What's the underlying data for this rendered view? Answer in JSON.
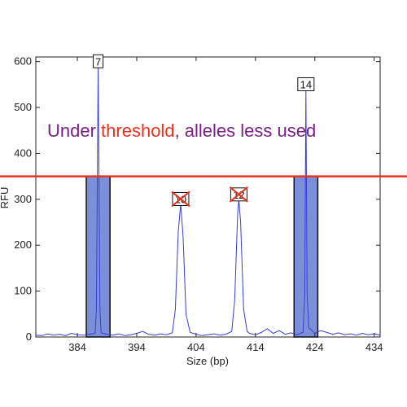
{
  "chart_data": {
    "type": "line",
    "title": "",
    "xlabel": "Size (bp)",
    "ylabel": "RFU",
    "xlim": [
      377,
      435
    ],
    "ylim": [
      0,
      610
    ],
    "xticks": [
      384,
      394,
      404,
      414,
      424,
      434
    ],
    "yticks": [
      0,
      100,
      200,
      300,
      400,
      500,
      600
    ],
    "grid": false,
    "annotation": {
      "parts": [
        {
          "text": "Under ",
          "color": "#7a1f86"
        },
        {
          "text": "threshold",
          "color": "#e8321e"
        },
        {
          "text": ", alleles less used",
          "color": "#7a1f86"
        }
      ]
    },
    "threshold": {
      "y": 350,
      "color": "#e8321e"
    },
    "bars": [
      {
        "x0": 385.5,
        "x1": 389.5,
        "value": 350,
        "color": "#7b8fd8"
      },
      {
        "x0": 420.5,
        "x1": 424.5,
        "value": 350,
        "color": "#7b8fd8"
      }
    ],
    "peaks": [
      {
        "x": 387.5,
        "height": 590,
        "label": "7",
        "crossed": false
      },
      {
        "x": 401.4,
        "height": 290,
        "label": "10",
        "crossed": true
      },
      {
        "x": 411.2,
        "height": 300,
        "label": "12",
        "crossed": true
      },
      {
        "x": 422.5,
        "height": 540,
        "label": "14",
        "crossed": false
      }
    ],
    "trace_color": "#3b3bd6",
    "series": [
      {
        "values": [
          [
            377,
            4
          ],
          [
            378,
            3
          ],
          [
            379,
            7
          ],
          [
            380,
            4
          ],
          [
            381,
            6
          ],
          [
            382,
            3
          ],
          [
            383,
            8
          ],
          [
            384,
            5
          ],
          [
            385,
            4
          ],
          [
            386,
            6
          ],
          [
            387,
            8
          ],
          [
            387.2,
            60
          ],
          [
            387.5,
            590
          ],
          [
            387.8,
            60
          ],
          [
            388,
            9
          ],
          [
            389,
            6
          ],
          [
            390,
            4
          ],
          [
            391,
            7
          ],
          [
            392,
            3
          ],
          [
            393,
            5
          ],
          [
            394,
            8
          ],
          [
            395,
            12
          ],
          [
            396,
            6
          ],
          [
            397,
            4
          ],
          [
            398,
            7
          ],
          [
            399,
            5
          ],
          [
            400,
            9
          ],
          [
            400.5,
            60
          ],
          [
            401,
            230
          ],
          [
            401.4,
            290
          ],
          [
            401.8,
            220
          ],
          [
            402.3,
            50
          ],
          [
            403,
            10
          ],
          [
            404,
            6
          ],
          [
            405,
            3
          ],
          [
            406,
            5
          ],
          [
            407,
            7
          ],
          [
            408,
            4
          ],
          [
            409,
            6
          ],
          [
            410,
            12
          ],
          [
            410.5,
            80
          ],
          [
            411,
            270
          ],
          [
            411.2,
            300
          ],
          [
            411.5,
            250
          ],
          [
            412,
            60
          ],
          [
            412.6,
            12
          ],
          [
            413,
            8
          ],
          [
            414,
            5
          ],
          [
            415,
            10
          ],
          [
            416,
            18
          ],
          [
            417,
            8
          ],
          [
            418,
            14
          ],
          [
            419,
            6
          ],
          [
            420,
            9
          ],
          [
            421,
            5
          ],
          [
            422,
            10
          ],
          [
            422.3,
            90
          ],
          [
            422.5,
            540
          ],
          [
            422.7,
            90
          ],
          [
            423,
            20
          ],
          [
            424,
            8
          ],
          [
            425,
            14
          ],
          [
            426,
            10
          ],
          [
            427,
            6
          ],
          [
            428,
            9
          ],
          [
            429,
            5
          ],
          [
            430,
            7
          ],
          [
            431,
            4
          ],
          [
            432,
            8
          ],
          [
            433,
            5
          ],
          [
            434,
            7
          ],
          [
            435,
            4
          ]
        ]
      }
    ]
  }
}
